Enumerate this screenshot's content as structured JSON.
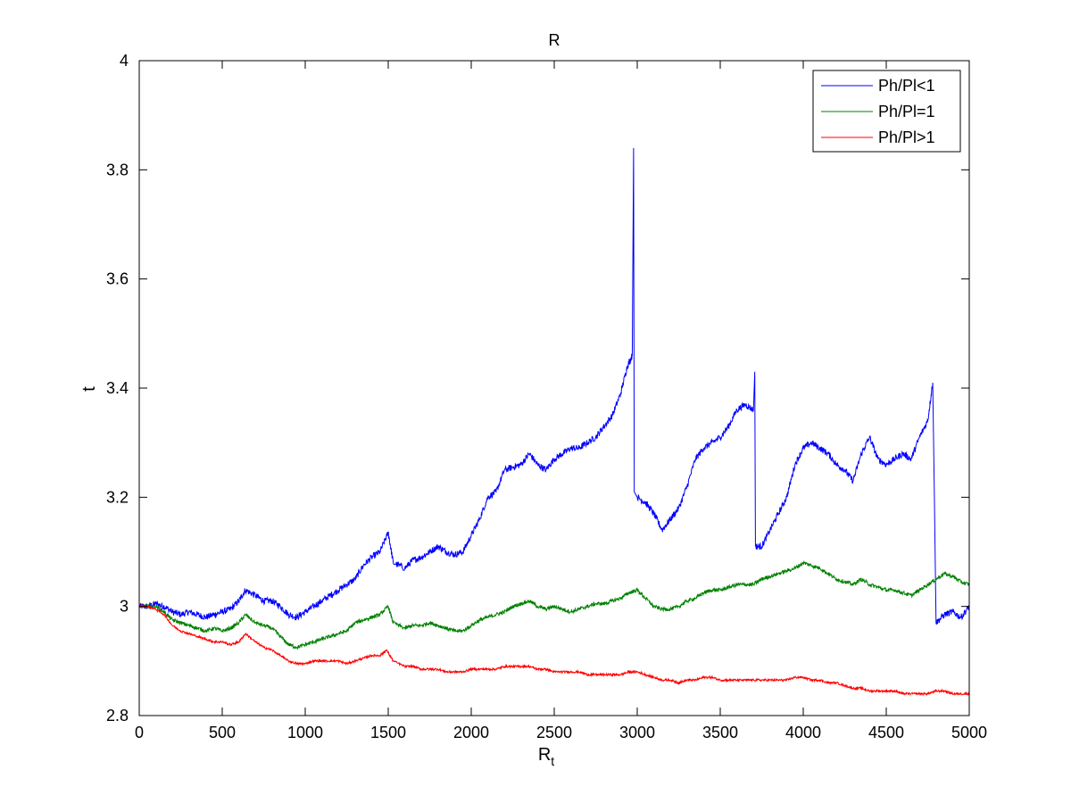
{
  "chart_data": {
    "type": "line",
    "title": "R",
    "xlabel": "R",
    "xlabel_subscript": "t",
    "ylabel": "t",
    "xlim": [
      0,
      5000
    ],
    "ylim": [
      2.8,
      4.0
    ],
    "x_ticks": [
      0,
      500,
      1000,
      1500,
      2000,
      2500,
      3000,
      3500,
      4000,
      4500,
      5000
    ],
    "y_ticks": [
      2.8,
      3.0,
      3.2,
      3.4,
      3.6,
      3.8,
      4.0
    ],
    "x_tick_labels": [
      "0",
      "500",
      "1000",
      "1500",
      "2000",
      "2500",
      "3000",
      "3500",
      "4000",
      "4500",
      "5000"
    ],
    "y_tick_labels": [
      "2.8",
      "3",
      "3.2",
      "3.4",
      "3.6",
      "3.8",
      "4"
    ],
    "grid": false,
    "legend_position": "top-right",
    "series": [
      {
        "name": "Ph/Pl<1",
        "color": "#0000ff",
        "points": [
          [
            0,
            3.0
          ],
          [
            50,
            3.0
          ],
          [
            100,
            3.005
          ],
          [
            150,
            3.0
          ],
          [
            200,
            2.99
          ],
          [
            250,
            2.985
          ],
          [
            300,
            2.99
          ],
          [
            350,
            2.985
          ],
          [
            400,
            2.98
          ],
          [
            450,
            2.985
          ],
          [
            500,
            2.99
          ],
          [
            550,
            2.995
          ],
          [
            600,
            3.01
          ],
          [
            640,
            3.03
          ],
          [
            700,
            3.02
          ],
          [
            750,
            3.01
          ],
          [
            800,
            3.01
          ],
          [
            850,
            3.0
          ],
          [
            900,
            2.985
          ],
          [
            950,
            2.98
          ],
          [
            1000,
            2.99
          ],
          [
            1050,
            3.0
          ],
          [
            1100,
            3.01
          ],
          [
            1150,
            3.02
          ],
          [
            1200,
            3.03
          ],
          [
            1250,
            3.04
          ],
          [
            1300,
            3.05
          ],
          [
            1350,
            3.075
          ],
          [
            1400,
            3.09
          ],
          [
            1450,
            3.1
          ],
          [
            1500,
            3.135
          ],
          [
            1530,
            3.08
          ],
          [
            1600,
            3.07
          ],
          [
            1650,
            3.085
          ],
          [
            1700,
            3.09
          ],
          [
            1750,
            3.1
          ],
          [
            1800,
            3.11
          ],
          [
            1850,
            3.1
          ],
          [
            1900,
            3.095
          ],
          [
            1950,
            3.1
          ],
          [
            2000,
            3.13
          ],
          [
            2050,
            3.16
          ],
          [
            2100,
            3.2
          ],
          [
            2150,
            3.21
          ],
          [
            2200,
            3.25
          ],
          [
            2250,
            3.255
          ],
          [
            2300,
            3.26
          ],
          [
            2350,
            3.28
          ],
          [
            2400,
            3.26
          ],
          [
            2450,
            3.25
          ],
          [
            2500,
            3.27
          ],
          [
            2550,
            3.28
          ],
          [
            2600,
            3.29
          ],
          [
            2650,
            3.29
          ],
          [
            2700,
            3.3
          ],
          [
            2750,
            3.31
          ],
          [
            2800,
            3.33
          ],
          [
            2850,
            3.35
          ],
          [
            2900,
            3.39
          ],
          [
            2940,
            3.44
          ],
          [
            2970,
            3.46
          ],
          [
            2978,
            3.84
          ],
          [
            2982,
            3.21
          ],
          [
            3000,
            3.2
          ],
          [
            3050,
            3.19
          ],
          [
            3100,
            3.17
          ],
          [
            3150,
            3.14
          ],
          [
            3200,
            3.16
          ],
          [
            3250,
            3.18
          ],
          [
            3300,
            3.22
          ],
          [
            3350,
            3.27
          ],
          [
            3400,
            3.29
          ],
          [
            3450,
            3.3
          ],
          [
            3500,
            3.31
          ],
          [
            3550,
            3.33
          ],
          [
            3600,
            3.36
          ],
          [
            3650,
            3.37
          ],
          [
            3700,
            3.36
          ],
          [
            3708,
            3.43
          ],
          [
            3712,
            3.11
          ],
          [
            3750,
            3.11
          ],
          [
            3800,
            3.14
          ],
          [
            3850,
            3.17
          ],
          [
            3900,
            3.2
          ],
          [
            3950,
            3.26
          ],
          [
            4000,
            3.29
          ],
          [
            4050,
            3.3
          ],
          [
            4100,
            3.29
          ],
          [
            4150,
            3.28
          ],
          [
            4200,
            3.26
          ],
          [
            4250,
            3.25
          ],
          [
            4300,
            3.23
          ],
          [
            4350,
            3.28
          ],
          [
            4400,
            3.31
          ],
          [
            4450,
            3.27
          ],
          [
            4500,
            3.26
          ],
          [
            4550,
            3.27
          ],
          [
            4600,
            3.28
          ],
          [
            4650,
            3.27
          ],
          [
            4700,
            3.31
          ],
          [
            4750,
            3.34
          ],
          [
            4780,
            3.41
          ],
          [
            4790,
            3.2
          ],
          [
            4800,
            2.97
          ],
          [
            4850,
            2.985
          ],
          [
            4900,
            2.99
          ],
          [
            4950,
            2.98
          ],
          [
            5000,
            3.0
          ]
        ]
      },
      {
        "name": "Ph/Pl=1",
        "color": "#008000",
        "points": [
          [
            0,
            3.0
          ],
          [
            50,
            3.0
          ],
          [
            100,
            3.0
          ],
          [
            150,
            2.99
          ],
          [
            200,
            2.975
          ],
          [
            250,
            2.97
          ],
          [
            300,
            2.965
          ],
          [
            350,
            2.96
          ],
          [
            400,
            2.955
          ],
          [
            450,
            2.96
          ],
          [
            500,
            2.955
          ],
          [
            550,
            2.96
          ],
          [
            600,
            2.97
          ],
          [
            640,
            2.985
          ],
          [
            700,
            2.97
          ],
          [
            750,
            2.965
          ],
          [
            800,
            2.96
          ],
          [
            850,
            2.945
          ],
          [
            900,
            2.93
          ],
          [
            950,
            2.925
          ],
          [
            1000,
            2.93
          ],
          [
            1050,
            2.935
          ],
          [
            1100,
            2.94
          ],
          [
            1150,
            2.945
          ],
          [
            1200,
            2.95
          ],
          [
            1250,
            2.955
          ],
          [
            1300,
            2.97
          ],
          [
            1350,
            2.975
          ],
          [
            1400,
            2.98
          ],
          [
            1450,
            2.985
          ],
          [
            1500,
            3.0
          ],
          [
            1530,
            2.97
          ],
          [
            1600,
            2.96
          ],
          [
            1650,
            2.965
          ],
          [
            1700,
            2.965
          ],
          [
            1750,
            2.97
          ],
          [
            1800,
            2.965
          ],
          [
            1850,
            2.96
          ],
          [
            1900,
            2.955
          ],
          [
            1950,
            2.955
          ],
          [
            2000,
            2.965
          ],
          [
            2050,
            2.975
          ],
          [
            2100,
            2.98
          ],
          [
            2150,
            2.985
          ],
          [
            2200,
            2.99
          ],
          [
            2250,
            3.0
          ],
          [
            2300,
            3.005
          ],
          [
            2350,
            3.01
          ],
          [
            2400,
            3.0
          ],
          [
            2450,
            2.995
          ],
          [
            2500,
            3.0
          ],
          [
            2550,
            2.995
          ],
          [
            2600,
            2.99
          ],
          [
            2650,
            2.995
          ],
          [
            2700,
            3.0
          ],
          [
            2750,
            3.005
          ],
          [
            2800,
            3.005
          ],
          [
            2850,
            3.01
          ],
          [
            2900,
            3.015
          ],
          [
            2950,
            3.025
          ],
          [
            3000,
            3.03
          ],
          [
            3050,
            3.015
          ],
          [
            3100,
            3.0
          ],
          [
            3150,
            2.995
          ],
          [
            3200,
            2.995
          ],
          [
            3250,
            3.0
          ],
          [
            3300,
            3.01
          ],
          [
            3350,
            3.015
          ],
          [
            3400,
            3.025
          ],
          [
            3450,
            3.03
          ],
          [
            3500,
            3.03
          ],
          [
            3550,
            3.035
          ],
          [
            3600,
            3.04
          ],
          [
            3650,
            3.04
          ],
          [
            3700,
            3.04
          ],
          [
            3750,
            3.05
          ],
          [
            3800,
            3.055
          ],
          [
            3850,
            3.06
          ],
          [
            3900,
            3.065
          ],
          [
            3950,
            3.07
          ],
          [
            4000,
            3.08
          ],
          [
            4050,
            3.075
          ],
          [
            4100,
            3.07
          ],
          [
            4150,
            3.06
          ],
          [
            4200,
            3.05
          ],
          [
            4250,
            3.045
          ],
          [
            4300,
            3.04
          ],
          [
            4350,
            3.05
          ],
          [
            4400,
            3.04
          ],
          [
            4450,
            3.035
          ],
          [
            4500,
            3.03
          ],
          [
            4550,
            3.03
          ],
          [
            4600,
            3.025
          ],
          [
            4650,
            3.02
          ],
          [
            4700,
            3.03
          ],
          [
            4750,
            3.04
          ],
          [
            4800,
            3.05
          ],
          [
            4850,
            3.06
          ],
          [
            4900,
            3.055
          ],
          [
            4950,
            3.045
          ],
          [
            5000,
            3.04
          ]
        ]
      },
      {
        "name": "Ph/Pl>1",
        "color": "#ff0000",
        "points": [
          [
            0,
            3.0
          ],
          [
            50,
            3.0
          ],
          [
            100,
            2.995
          ],
          [
            150,
            2.985
          ],
          [
            200,
            2.965
          ],
          [
            250,
            2.955
          ],
          [
            300,
            2.95
          ],
          [
            350,
            2.945
          ],
          [
            400,
            2.94
          ],
          [
            450,
            2.935
          ],
          [
            500,
            2.935
          ],
          [
            550,
            2.93
          ],
          [
            600,
            2.935
          ],
          [
            640,
            2.95
          ],
          [
            700,
            2.935
          ],
          [
            750,
            2.925
          ],
          [
            800,
            2.92
          ],
          [
            850,
            2.91
          ],
          [
            900,
            2.9
          ],
          [
            950,
            2.895
          ],
          [
            1000,
            2.895
          ],
          [
            1050,
            2.9
          ],
          [
            1100,
            2.9
          ],
          [
            1150,
            2.9
          ],
          [
            1200,
            2.9
          ],
          [
            1250,
            2.895
          ],
          [
            1300,
            2.9
          ],
          [
            1350,
            2.905
          ],
          [
            1400,
            2.91
          ],
          [
            1450,
            2.91
          ],
          [
            1490,
            2.92
          ],
          [
            1530,
            2.9
          ],
          [
            1600,
            2.89
          ],
          [
            1650,
            2.89
          ],
          [
            1700,
            2.885
          ],
          [
            1750,
            2.885
          ],
          [
            1800,
            2.885
          ],
          [
            1850,
            2.88
          ],
          [
            1900,
            2.88
          ],
          [
            1950,
            2.88
          ],
          [
            2000,
            2.885
          ],
          [
            2050,
            2.885
          ],
          [
            2100,
            2.885
          ],
          [
            2150,
            2.885
          ],
          [
            2200,
            2.89
          ],
          [
            2250,
            2.89
          ],
          [
            2300,
            2.89
          ],
          [
            2350,
            2.89
          ],
          [
            2400,
            2.885
          ],
          [
            2450,
            2.885
          ],
          [
            2500,
            2.88
          ],
          [
            2550,
            2.88
          ],
          [
            2600,
            2.88
          ],
          [
            2650,
            2.88
          ],
          [
            2700,
            2.875
          ],
          [
            2750,
            2.875
          ],
          [
            2800,
            2.875
          ],
          [
            2850,
            2.875
          ],
          [
            2900,
            2.875
          ],
          [
            2950,
            2.88
          ],
          [
            3000,
            2.88
          ],
          [
            3050,
            2.875
          ],
          [
            3100,
            2.87
          ],
          [
            3150,
            2.865
          ],
          [
            3200,
            2.865
          ],
          [
            3250,
            2.86
          ],
          [
            3300,
            2.865
          ],
          [
            3350,
            2.865
          ],
          [
            3400,
            2.87
          ],
          [
            3450,
            2.87
          ],
          [
            3500,
            2.865
          ],
          [
            3550,
            2.865
          ],
          [
            3600,
            2.865
          ],
          [
            3650,
            2.865
          ],
          [
            3700,
            2.865
          ],
          [
            3750,
            2.865
          ],
          [
            3800,
            2.865
          ],
          [
            3850,
            2.865
          ],
          [
            3900,
            2.865
          ],
          [
            3950,
            2.87
          ],
          [
            4000,
            2.87
          ],
          [
            4050,
            2.865
          ],
          [
            4100,
            2.865
          ],
          [
            4150,
            2.86
          ],
          [
            4200,
            2.86
          ],
          [
            4250,
            2.855
          ],
          [
            4300,
            2.85
          ],
          [
            4350,
            2.85
          ],
          [
            4400,
            2.845
          ],
          [
            4450,
            2.845
          ],
          [
            4500,
            2.845
          ],
          [
            4550,
            2.845
          ],
          [
            4600,
            2.84
          ],
          [
            4650,
            2.84
          ],
          [
            4700,
            2.84
          ],
          [
            4750,
            2.84
          ],
          [
            4800,
            2.845
          ],
          [
            4850,
            2.845
          ],
          [
            4900,
            2.84
          ],
          [
            4950,
            2.84
          ],
          [
            5000,
            2.84
          ]
        ]
      }
    ]
  }
}
